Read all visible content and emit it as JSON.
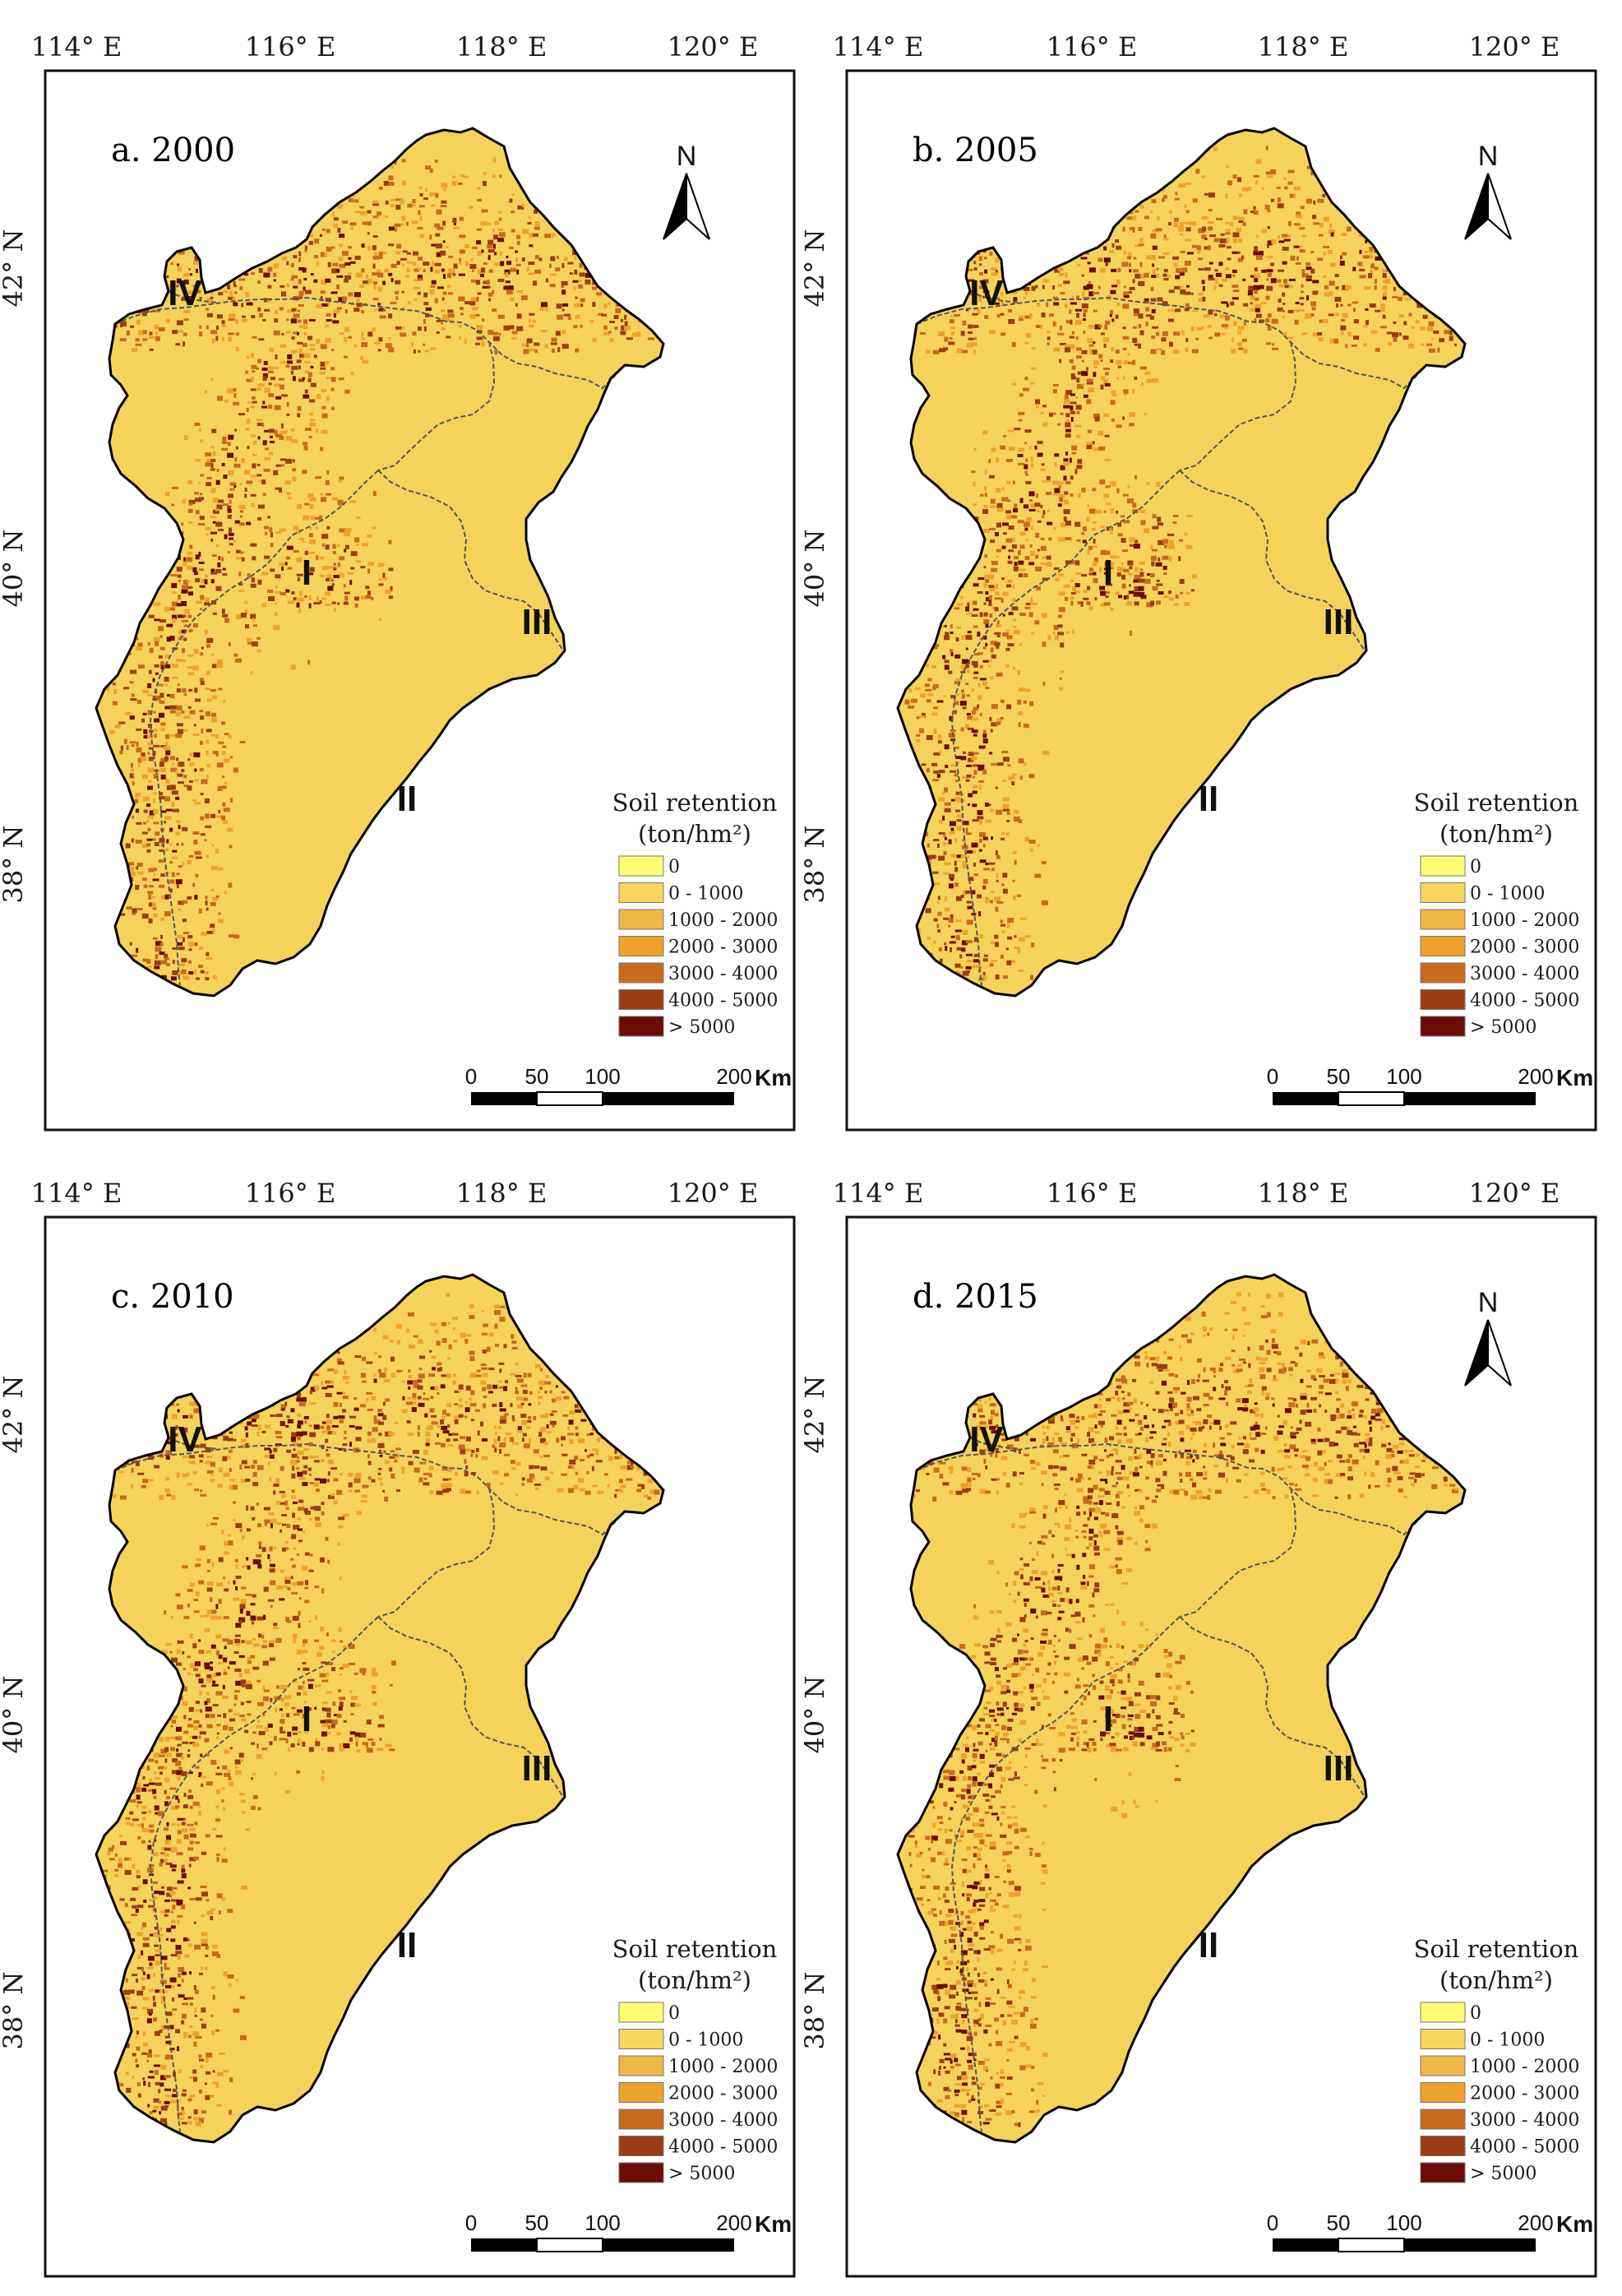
{
  "legend": {
    "title": "Soil retention",
    "unit": "(ton/hm²)",
    "classes": [
      {
        "label": "0",
        "color": "#ffff73"
      },
      {
        "label": "0 - 1000",
        "color": "#f8d65e"
      },
      {
        "label": "1000 - 2000",
        "color": "#f0b646"
      },
      {
        "label": "2000 - 3000",
        "color": "#eea22c"
      },
      {
        "label": "3000 - 4000",
        "color": "#c86a1b"
      },
      {
        "label": "4000 - 5000",
        "color": "#9b3d12"
      },
      {
        "label": "> 5000",
        "color": "#6b0c06"
      }
    ]
  },
  "axes": {
    "lon_labels": [
      "114° E",
      "116° E",
      "118° E",
      "120° E"
    ],
    "lat_labels": [
      "42° N",
      "40° N",
      "38° N"
    ]
  },
  "north_arrow": {
    "label": "N",
    "icon": "north-arrow-icon"
  },
  "scale_bar": {
    "ticks": [
      "0",
      "50",
      "100",
      "200"
    ],
    "unit": "Km"
  },
  "regions": [
    "I",
    "II",
    "III",
    "IV"
  ],
  "colors": {
    "base": "#f5d35b",
    "boundary": "#000000",
    "sub_boundary": "#555555"
  },
  "panels": [
    {
      "title": "a. 2000",
      "north_arrow": true
    },
    {
      "title": "b. 2005",
      "north_arrow": true
    },
    {
      "title": "c. 2010",
      "north_arrow": false
    },
    {
      "title": "d. 2015",
      "north_arrow": true
    }
  ]
}
